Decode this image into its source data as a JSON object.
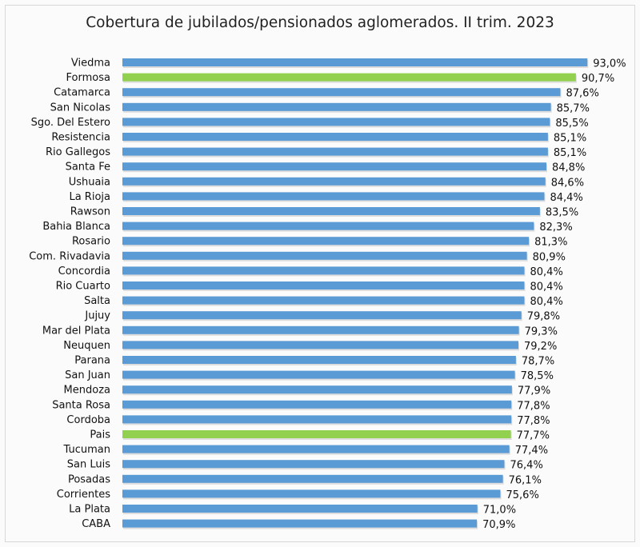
{
  "chart_data": {
    "type": "bar",
    "orientation": "horizontal",
    "title": "Cobertura de jubilados/pensionados  aglomerados. II trim. 2023",
    "categories": [
      "Viedma",
      "Formosa",
      "Catamarca",
      "San Nicolas",
      "Sgo. Del Estero",
      "Resistencia",
      "Rio Gallegos",
      "Santa Fe",
      "Ushuaia",
      "La Rioja",
      "Rawson",
      "Bahia Blanca",
      "Rosario",
      "Com. Rivadavia",
      "Concordia",
      "Rio Cuarto",
      "Salta",
      "Jujuy",
      "Mar del Plata",
      "Neuquen",
      "Parana",
      "San Juan",
      "Mendoza",
      "Santa Rosa",
      "Cordoba",
      "Pais",
      "Tucuman",
      "San Luis",
      "Posadas",
      "Corrientes",
      "La Plata",
      "CABA"
    ],
    "values": [
      93.0,
      90.7,
      87.6,
      85.7,
      85.5,
      85.1,
      85.1,
      84.8,
      84.6,
      84.4,
      83.5,
      82.3,
      81.3,
      80.9,
      80.4,
      80.4,
      80.4,
      79.8,
      79.3,
      79.2,
      78.7,
      78.5,
      77.9,
      77.8,
      77.8,
      77.7,
      77.4,
      76.4,
      76.1,
      75.6,
      71.0,
      70.9
    ],
    "data_labels": [
      "93,0%",
      "90,7%",
      "87,6%",
      "85,7%",
      "85,5%",
      "85,1%",
      "85,1%",
      "84,8%",
      "84,6%",
      "84,4%",
      "83,5%",
      "82,3%",
      "81,3%",
      "80,9%",
      "80,4%",
      "80,4%",
      "80,4%",
      "79,8%",
      "79,3%",
      "79,2%",
      "78,7%",
      "78,5%",
      "77,9%",
      "77,8%",
      "77,8%",
      "77,7%",
      "77,4%",
      "76,4%",
      "76,1%",
      "75,6%",
      "71,0%",
      "70,9%"
    ],
    "highlighted": [
      "Formosa",
      "Pais"
    ],
    "colors": {
      "default": "#5b9bd5",
      "highlight": "#92d050"
    },
    "xlim": [
      0,
      100
    ],
    "grid": false,
    "legend": "none",
    "axes_visible": false
  }
}
